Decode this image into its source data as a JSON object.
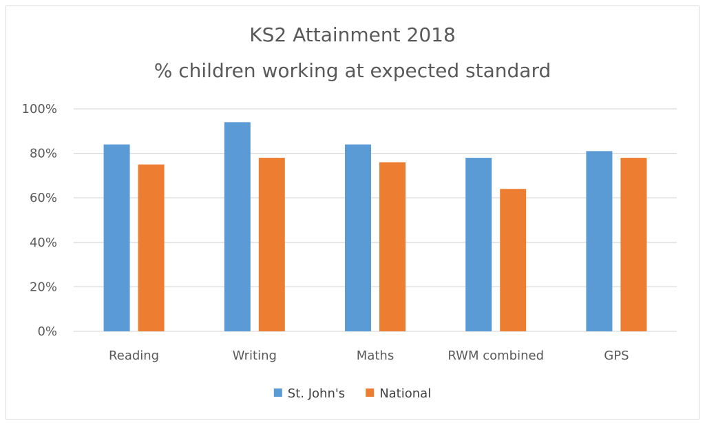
{
  "chart_data": {
    "type": "bar",
    "title_lines": [
      "KS2 Attainment 2018",
      "% children working at expected standard"
    ],
    "categories": [
      "Reading",
      "Writing",
      "Maths",
      "RWM combined",
      "GPS"
    ],
    "series": [
      {
        "name": "St. John's",
        "values": [
          84,
          94,
          84,
          78,
          81
        ],
        "color": "#5b9bd5"
      },
      {
        "name": "National",
        "values": [
          75,
          78,
          76,
          64,
          78
        ],
        "color": "#ed7d31"
      }
    ],
    "ylim": [
      0,
      100
    ],
    "yticks": [
      0,
      20,
      40,
      60,
      80,
      100
    ],
    "ytick_labels": [
      "0%",
      "20%",
      "40%",
      "60%",
      "80%",
      "100%"
    ],
    "grid": true,
    "legend_position": "bottom",
    "colors": {
      "gridline": "#d9d9d9",
      "text": "#595959"
    }
  }
}
